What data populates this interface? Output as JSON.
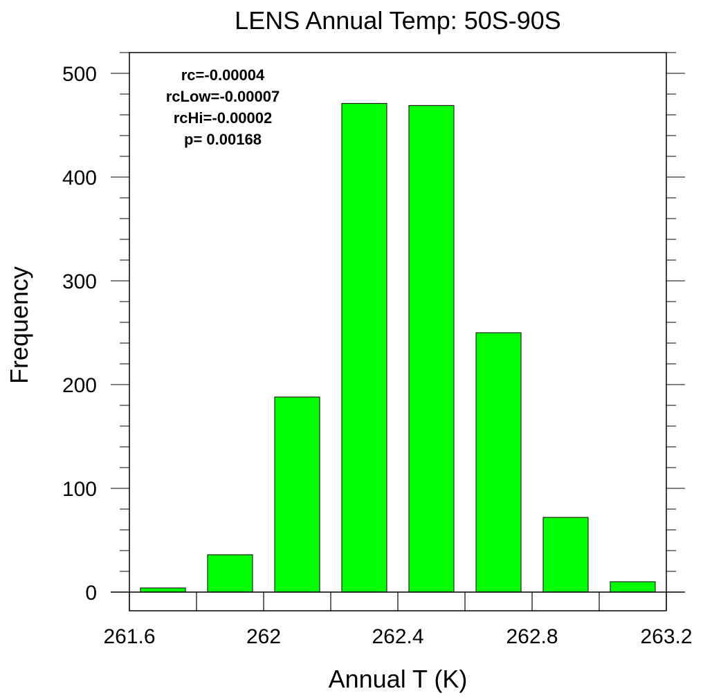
{
  "chart_data": {
    "type": "bar",
    "title": "LENS Annual Temp: 50S-90S",
    "xlabel": "Annual T (K)",
    "ylabel": "Frequency",
    "xlim": [
      261.6,
      263.2
    ],
    "ylim": [
      -18,
      520
    ],
    "xticks": [
      261.6,
      262.0,
      262.4,
      262.8,
      263.2
    ],
    "xtick_labels": [
      "261.6",
      "262",
      "262.4",
      "262.8",
      "263.2"
    ],
    "xminor_step": 0.2,
    "yticks": [
      0,
      100,
      200,
      300,
      400,
      500
    ],
    "ytick_labels": [
      "0",
      "100",
      "200",
      "300",
      "400",
      "500"
    ],
    "yminor_step": 20,
    "bin_width": 0.2,
    "bar_fraction": 0.67,
    "bin_centers": [
      261.7,
      261.9,
      262.1,
      262.3,
      262.5,
      262.7,
      262.9,
      263.1
    ],
    "values": [
      4,
      36,
      188,
      471,
      469,
      250,
      72,
      10
    ],
    "bar_color": "#00ff00",
    "grid": false,
    "annotations": [
      "rc=-0.00004",
      "rcLow=-0.00007",
      "rcHi=-0.00002",
      "p= 0.00168"
    ]
  }
}
